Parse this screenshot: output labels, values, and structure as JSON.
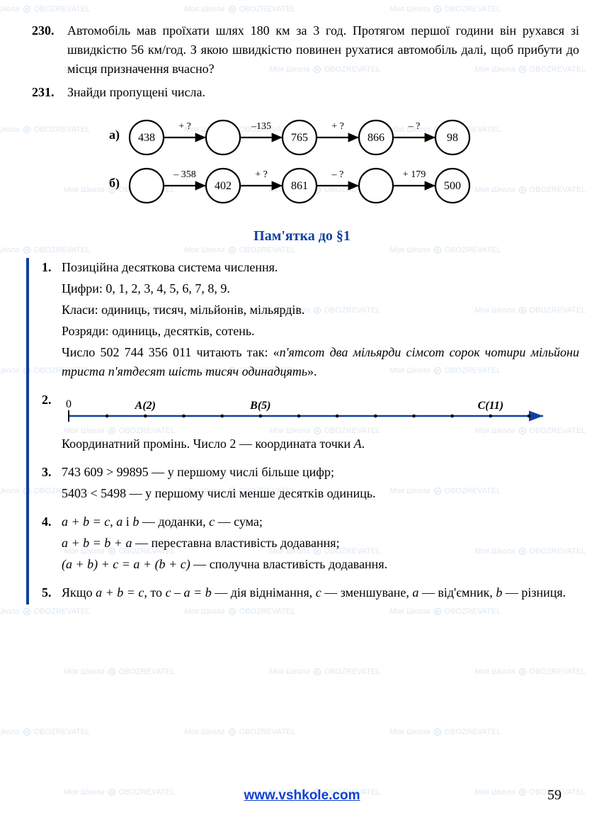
{
  "problems": {
    "p230": {
      "num": "230.",
      "text": "Автомобіль мав проїхати шлях 180 км за 3 год. Протягом першої години він рухався зі швидкістю 56 км/год. З якою швидкістю повинен рухатися автомобіль далі, щоб прибути до місця призначення вчасно?"
    },
    "p231": {
      "num": "231.",
      "text": "Знайди пропущені числа."
    }
  },
  "chains": {
    "a": {
      "label": "а)",
      "nodes": [
        "438",
        "",
        "765",
        "866",
        "98"
      ],
      "edges": [
        "+ ?",
        "–135",
        "+ ?",
        "– ?"
      ],
      "node_radius": 24,
      "node_fill": "#ffffff",
      "node_stroke": "#000000",
      "font_size": 16,
      "edge_font_size": 14
    },
    "b": {
      "label": "б)",
      "nodes": [
        "",
        "402",
        "861",
        "",
        "500"
      ],
      "edges": [
        "– 358",
        "+ ?",
        "– ?",
        "+ 179"
      ],
      "node_radius": 24,
      "node_fill": "#ffffff",
      "node_stroke": "#000000",
      "font_size": 16,
      "edge_font_size": 14
    }
  },
  "memo": {
    "title": "Пам'ятка до §1",
    "items": {
      "i1": {
        "num": "1.",
        "l1": "Позиційна десяткова система числення.",
        "l2": "Цифри: 0, 1, 2, 3, 4, 5, 6, 7, 8, 9.",
        "l3": "Класи: одиниць, тисяч, мільйонів, мільярдів.",
        "l4": "Розряди: одиниць, десятків, сотень.",
        "l5a": "Число 502 744 356 011 читають так: «",
        "l5b": "п'ятсот два мільярди сімсот сорок чотири мільйони триста п'ятдесят шість тисяч одинадцять",
        "l5c": "»."
      },
      "i2": {
        "num": "2.",
        "caption": "Координатний промінь. Число 2 — координата точки ",
        "point": "A",
        "dot": ".",
        "numberline": {
          "origin_label": "0",
          "points": [
            {
              "x": 2,
              "label": "A(2)"
            },
            {
              "x": 5,
              "label": "B(5)"
            },
            {
              "x": 11,
              "label": "C(11)"
            }
          ],
          "ticks": 12,
          "color": "#1040a0",
          "tick_color": "#000000"
        }
      },
      "i3": {
        "num": "3.",
        "l1": "743 609 > 99895 — у першому числі більше цифр;",
        "l2": "5403 < 5498 — у першому числі менше десятків одиниць."
      },
      "i4": {
        "num": "4.",
        "l1a": "a + b = c",
        "l1b": ", ",
        "l1c": "a",
        "l1d": " і ",
        "l1e": "b",
        "l1f": " — доданки, ",
        "l1g": "c",
        "l1h": " — сума;",
        "l2a": "a + b = b + a",
        "l2b": " — переставна властивість додавання;",
        "l3a": "(a + b) + c = a + (b + c)",
        "l3b": " — сполучна властивість додавання."
      },
      "i5": {
        "num": "5.",
        "l1a": "Якщо ",
        "l1b": "a + b = c",
        "l1c": ", то ",
        "l1d": "c – a = b",
        "l1e": " — дія віднімання, ",
        "l1f": "c",
        "l1g": " — зменшуване, ",
        "l1h": "a",
        "l1i": " — від'ємник, ",
        "l1j": "b",
        "l1k": " — різниця."
      }
    }
  },
  "footer": {
    "url": "www.vshkole.com",
    "page": "59"
  },
  "watermark": {
    "text1": "Моя Школа",
    "text2": "OBOZREVATEL"
  },
  "colors": {
    "accent": "#1040a0",
    "text": "#000000",
    "wm": "rgba(70,130,180,0.18)"
  }
}
